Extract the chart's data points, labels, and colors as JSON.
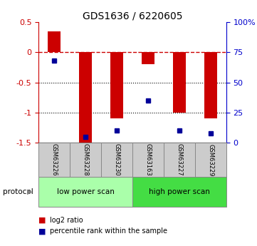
{
  "title": "GDS1636 / 6220605",
  "samples": [
    "GSM63226",
    "GSM63228",
    "GSM63230",
    "GSM63163",
    "GSM63227",
    "GSM63229"
  ],
  "log2_ratio": [
    0.35,
    -1.5,
    -1.1,
    -0.2,
    -1.0,
    -1.1
  ],
  "percentile_rank": [
    68,
    5,
    10,
    35,
    10,
    8
  ],
  "ylim_left": [
    -1.5,
    0.5
  ],
  "ylim_right": [
    0,
    100
  ],
  "bar_color": "#cc0000",
  "dot_color": "#000099",
  "groups": [
    {
      "label": "low power scan",
      "indices": [
        0,
        1,
        2
      ],
      "color": "#aaffaa"
    },
    {
      "label": "high power scan",
      "indices": [
        3,
        4,
        5
      ],
      "color": "#44dd44"
    }
  ],
  "legend_bar_label": "log2 ratio",
  "legend_dot_label": "percentile rank within the sample",
  "left_axis_color": "#cc0000",
  "right_axis_color": "#0000cc",
  "grid_dotted_values": [
    -0.5,
    -1.0
  ],
  "zero_line_color": "#cc0000",
  "background_color": "#ffffff",
  "sample_box_color": "#cccccc",
  "sample_box_edge": "#888888"
}
